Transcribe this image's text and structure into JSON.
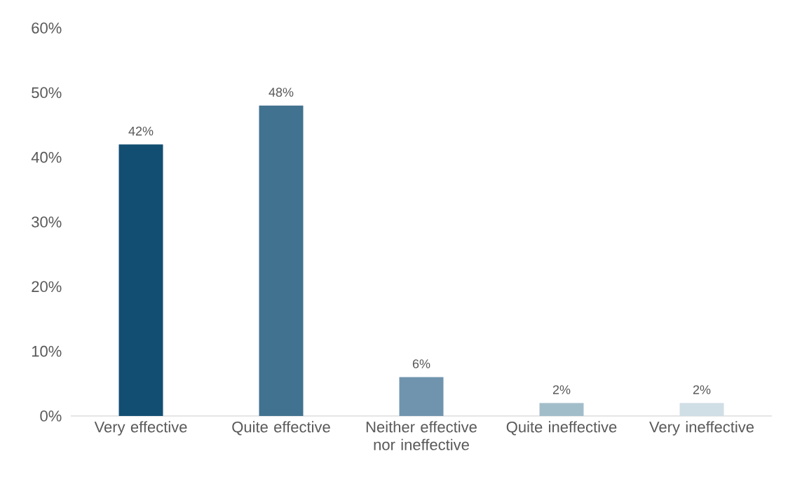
{
  "chart_data": {
    "type": "bar",
    "categories": [
      "Very effective",
      "Quite effective",
      "Neither effective nor ineffective",
      "Quite ineffective",
      "Very ineffective"
    ],
    "values": [
      42,
      48,
      6,
      2,
      2
    ],
    "colors": [
      "#124e72",
      "#41728f",
      "#7094ae",
      "#a2bdca",
      "#d0dee5"
    ],
    "value_labels": [
      "42%",
      "48%",
      "6%",
      "2%",
      "2%"
    ],
    "ylim": [
      0,
      60
    ],
    "yticks": [
      {
        "value": 0,
        "label": "0%"
      },
      {
        "value": 10,
        "label": "10%"
      },
      {
        "value": 20,
        "label": "20%"
      },
      {
        "value": 30,
        "label": "30%"
      },
      {
        "value": 40,
        "label": "40%"
      },
      {
        "value": 50,
        "label": "50%"
      },
      {
        "value": 60,
        "label": "60%"
      }
    ],
    "grid": false
  }
}
